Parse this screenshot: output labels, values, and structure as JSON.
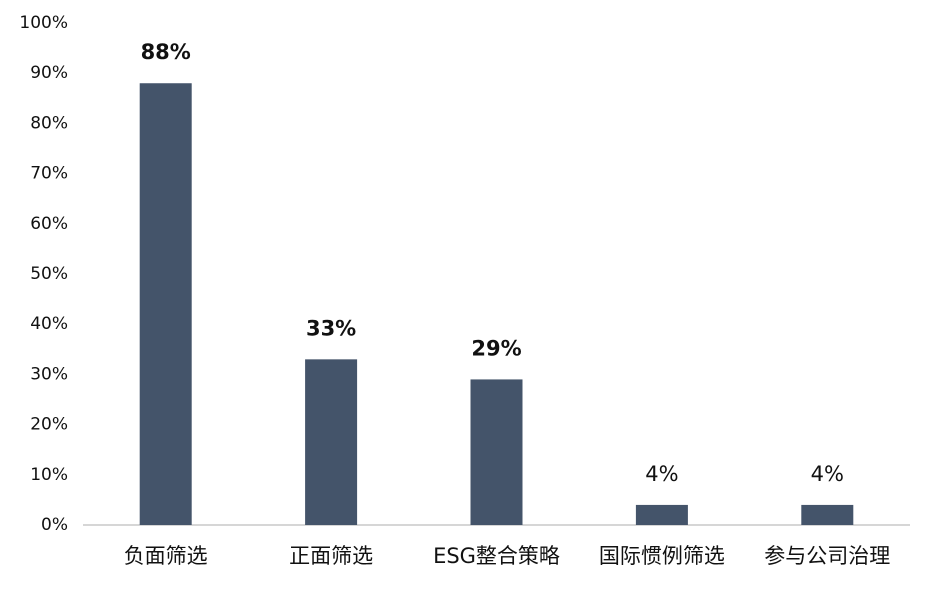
{
  "chart_data": {
    "type": "bar",
    "categories": [
      "负面筛选",
      "正面筛选",
      "ESG整合策略",
      "国际惯例筛选",
      "参与公司治理"
    ],
    "values": [
      88,
      33,
      29,
      4,
      4
    ],
    "value_labels": [
      "88%",
      "33%",
      "29%",
      "4%",
      "4%"
    ],
    "color": "#44546a",
    "ylim": [
      0,
      100
    ],
    "yticks": [
      {
        "value": 0,
        "label": "0%"
      },
      {
        "value": 10,
        "label": "10%"
      },
      {
        "value": 20,
        "label": "20%"
      },
      {
        "value": 30,
        "label": "30%"
      },
      {
        "value": 40,
        "label": "40%"
      },
      {
        "value": 50,
        "label": "50%"
      },
      {
        "value": 60,
        "label": "60%"
      },
      {
        "value": 70,
        "label": "70%"
      },
      {
        "value": 80,
        "label": "80%"
      },
      {
        "value": 90,
        "label": "90%"
      },
      {
        "value": 100,
        "label": "100%"
      }
    ],
    "grid": false
  }
}
